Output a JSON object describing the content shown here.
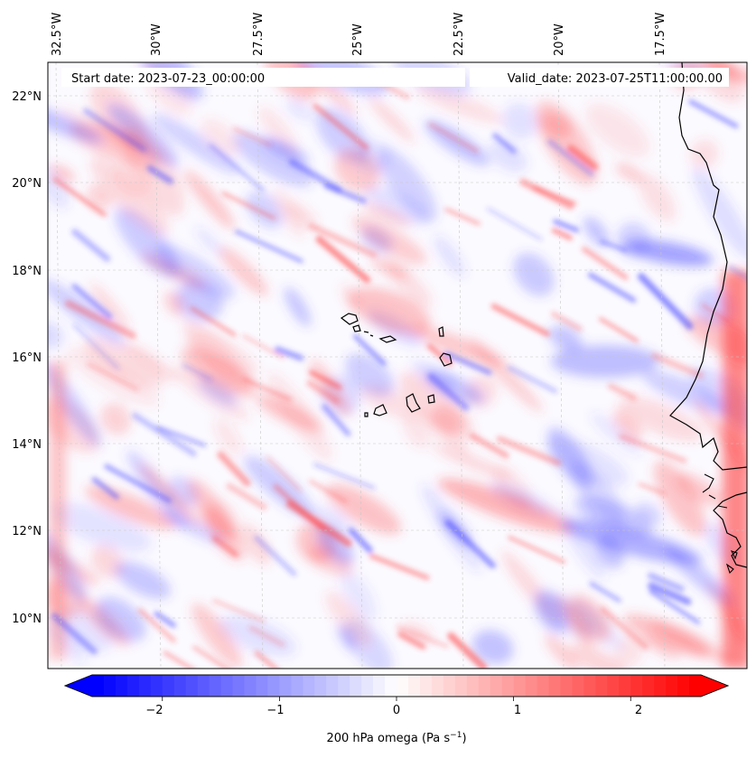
{
  "header": {
    "start_date": "Start date: 2023-07-23_00:00:00",
    "valid_date": "Valid_date: 2023-07-25T11:00:00.00"
  },
  "map": {
    "longitude_labels": [
      "32.5°W",
      "30°W",
      "27.5°W",
      "25°W",
      "22.5°W",
      "20°W",
      "17.5°W"
    ],
    "latitude_labels": [
      "22°N",
      "20°N",
      "18°N",
      "16°N",
      "14°N",
      "12°N",
      "10°N"
    ],
    "extent": {
      "lon_min": -32.7,
      "lon_max": -15.3,
      "lat_min": 8.9,
      "lat_max": 22.8
    },
    "field_description": "200 hPa vertical velocity (omega) shaded: red positive (descent), blue negative (ascent)",
    "gridlines": true
  },
  "colorbar": {
    "label": "200 hPa omega (Pa s",
    "label_sup": "−1",
    "label_close": ")",
    "tick_labels": [
      "−2",
      "−1",
      "0",
      "1",
      "2"
    ],
    "range": [
      -2.6,
      2.6
    ],
    "extend": "both",
    "cmap": "bwr",
    "color_min": "#0000ff",
    "color_mid": "#ffffff",
    "color_max": "#ff0000"
  }
}
